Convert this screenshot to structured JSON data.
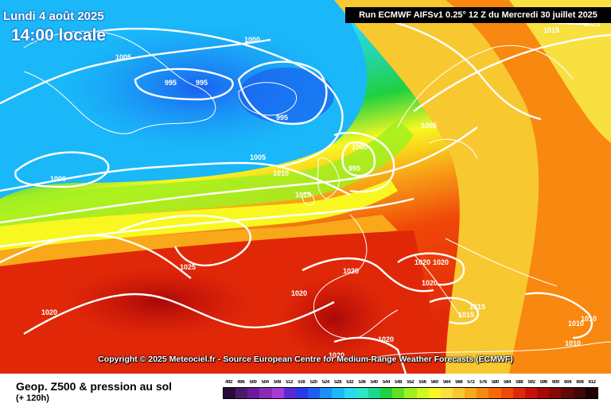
{
  "header": {
    "date": "Lundi 4 août 2025",
    "time": "14:00 locale",
    "run": "Run ECMWF AIFSv1 0.25° 12 Z du Mercredi 30 juillet 2025"
  },
  "copyright": "Copyright © 2025 Meteociel.fr - Source European Centre for Medium-Range Weather Forecasts (ECMWF)",
  "footer": {
    "title": "Geop. Z500 & pression au sol",
    "lead": "(+ 120h)"
  },
  "colorscale": {
    "labels": [
      "492",
      "496",
      "500",
      "504",
      "508",
      "512",
      "516",
      "520",
      "524",
      "528",
      "532",
      "536",
      "540",
      "544",
      "548",
      "552",
      "556",
      "560",
      "564",
      "568",
      "572",
      "576",
      "580",
      "584",
      "588",
      "592",
      "596",
      "600",
      "604",
      "608",
      "612"
    ],
    "colors": [
      "#2a0a3a",
      "#4a1a6a",
      "#6a1a9a",
      "#8a2ab8",
      "#a63ad6",
      "#5a2ad8",
      "#2a3ae8",
      "#1a60f0",
      "#1a90f8",
      "#1ab8f8",
      "#2ad8f0",
      "#2ae8c8",
      "#1ad890",
      "#20d040",
      "#60e020",
      "#a0f020",
      "#d0f820",
      "#f8f820",
      "#f8e040",
      "#f8c830",
      "#f8a818",
      "#f88810",
      "#f86808",
      "#f04808",
      "#e02808",
      "#c81008",
      "#a80808",
      "#880808",
      "#600808",
      "#400808",
      "#200000"
    ]
  },
  "isobars": [
    "1000",
    "1005",
    "995",
    "995",
    "995",
    "1005",
    "1000",
    "995",
    "1005",
    "1010",
    "1015",
    "1000",
    "1015",
    "1025",
    "1020",
    "1020",
    "1020",
    "1020",
    "1020",
    "1020",
    "1020",
    "1015",
    "1015",
    "1010",
    "1010",
    "1010",
    "1025",
    "1020"
  ]
}
